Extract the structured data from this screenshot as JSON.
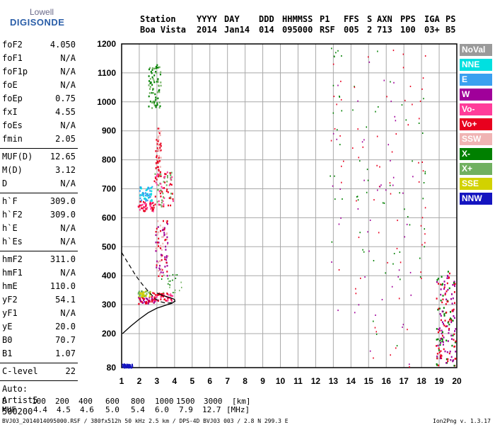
{
  "logo": {
    "line1": "Lowell",
    "line2": "DIGISONDE"
  },
  "header": {
    "row1": [
      "Station",
      "YYYY",
      "DAY",
      "DDD",
      "HHMMSS",
      "P1",
      "FFS",
      "S",
      "AXN",
      "PPS",
      "IGA",
      "PS"
    ],
    "row2": [
      "Boa Vista",
      "2014",
      "Jan14",
      "014",
      "095000",
      "RSF",
      "005",
      "2",
      "713",
      "100",
      "03+",
      "B5"
    ]
  },
  "params": {
    "group1": [
      {
        "name": "foF2",
        "value": "4.050"
      },
      {
        "name": "foF1",
        "value": "N/A"
      },
      {
        "name": "foF1p",
        "value": "N/A"
      },
      {
        "name": "foE",
        "value": "N/A"
      },
      {
        "name": "foEp",
        "value": "0.75"
      },
      {
        "name": "fxI",
        "value": "4.55"
      },
      {
        "name": "foEs",
        "value": "N/A"
      },
      {
        "name": "fmin",
        "value": "2.05"
      }
    ],
    "group2": [
      {
        "name": "MUF(D)",
        "value": "12.65"
      },
      {
        "name": "M(D)",
        "value": "3.12"
      },
      {
        "name": "D",
        "value": "N/A"
      }
    ],
    "group3": [
      {
        "name": "h`F",
        "value": "309.0"
      },
      {
        "name": "h`F2",
        "value": "309.0"
      },
      {
        "name": "h`E",
        "value": "N/A"
      },
      {
        "name": "h`Es",
        "value": "N/A"
      }
    ],
    "group4": [
      {
        "name": "hmF2",
        "value": "311.0"
      },
      {
        "name": "hmF1",
        "value": "N/A"
      },
      {
        "name": "hmE",
        "value": "110.0"
      },
      {
        "name": "yF2",
        "value": "54.1"
      },
      {
        "name": "yF1",
        "value": "N/A"
      },
      {
        "name": "yE",
        "value": "20.0"
      },
      {
        "name": "B0",
        "value": "70.7"
      },
      {
        "name": "B1",
        "value": "1.07"
      }
    ],
    "clevel": {
      "name": "C-level",
      "value": "22"
    },
    "auto": [
      "Auto:",
      "Artist5",
      "500200"
    ]
  },
  "chart_data": {
    "type": "scatter",
    "x_ticks": [
      "1",
      "2",
      "3",
      "4",
      "5",
      "6",
      "7",
      "8",
      "9",
      "10",
      "11",
      "12",
      "13",
      "14",
      "15",
      "16",
      "17",
      "18",
      "19",
      "20"
    ],
    "y_ticks": [
      "80",
      "200",
      "300",
      "400",
      "500",
      "600",
      "700",
      "800",
      "900",
      "1000",
      "1100",
      "1200"
    ],
    "xlim": [
      1,
      20
    ],
    "ylim": [
      80,
      1200
    ],
    "y_scale": "virtual height, 80 at bottom, 200 to 1200 linear",
    "grid": true,
    "legend": [
      {
        "name": "NoVal",
        "color": "#9a9a9a"
      },
      {
        "name": "NNE",
        "color": "#00e0e0"
      },
      {
        "name": "E",
        "color": "#3aa0f0"
      },
      {
        "name": "W",
        "color": "#a0009a"
      },
      {
        "name": "Vo-",
        "color": "#ff3c9a"
      },
      {
        "name": "Vo+",
        "color": "#e8001e"
      },
      {
        "name": "SSW",
        "color": "#f0b4b4"
      },
      {
        "name": "X-",
        "color": "#008000"
      },
      {
        "name": "X+",
        "color": "#70b060"
      },
      {
        "name": "SSE",
        "color": "#d2d200"
      },
      {
        "name": "NNW",
        "color": "#1414c0"
      }
    ],
    "profile_curve": [
      [
        1.05,
        200
      ],
      [
        1.5,
        225
      ],
      [
        2.0,
        250
      ],
      [
        2.5,
        272
      ],
      [
        3.0,
        288
      ],
      [
        3.5,
        298
      ],
      [
        3.85,
        305
      ],
      [
        4.02,
        312
      ],
      [
        4.0,
        318
      ],
      [
        3.75,
        324
      ],
      [
        3.4,
        330
      ],
      [
        3.0,
        340
      ]
    ],
    "muf_curve": [
      [
        1.0,
        480
      ],
      [
        1.4,
        440
      ],
      [
        1.8,
        400
      ],
      [
        2.2,
        368
      ],
      [
        2.6,
        340
      ],
      [
        2.9,
        320
      ],
      [
        3.2,
        310
      ],
      [
        3.55,
        305
      ],
      [
        3.85,
        307
      ],
      [
        4.05,
        312
      ]
    ],
    "clusters": [
      {
        "f": [
          1.9,
          2.9
        ],
        "h": [
          305,
          330
        ],
        "colors": [
          "#e8001e",
          "#a0009a"
        ]
      },
      {
        "f": [
          2.7,
          3.9
        ],
        "h": [
          315,
          345
        ],
        "colors": [
          "#e8001e",
          "#ff3c9a"
        ]
      },
      {
        "f": [
          3.2,
          4.4
        ],
        "h": [
          340,
          410
        ],
        "colors": [
          "#70b060",
          "#008000"
        ]
      },
      {
        "f": [
          1.9,
          2.6
        ],
        "h": [
          330,
          350
        ],
        "colors": [
          "#d2d200",
          "#70b060"
        ]
      },
      {
        "f": [
          2.9,
          3.6
        ],
        "h": [
          400,
          600
        ],
        "colors": [
          "#f0b4b4",
          "#e8001e",
          "#a0009a"
        ]
      },
      {
        "f": [
          1.9,
          2.8
        ],
        "h": [
          625,
          660
        ],
        "colors": [
          "#e8001e",
          "#ff3c9a"
        ]
      },
      {
        "f": [
          2.0,
          2.7
        ],
        "h": [
          660,
          710
        ],
        "colors": [
          "#3aa0f0",
          "#00e0e0"
        ]
      },
      {
        "f": [
          2.8,
          3.9
        ],
        "h": [
          640,
          760
        ],
        "colors": [
          "#e8001e",
          "#ff3c9a",
          "#70b060"
        ]
      },
      {
        "f": [
          2.5,
          3.2
        ],
        "h": [
          980,
          1130
        ],
        "colors": [
          "#70b060",
          "#008000"
        ]
      },
      {
        "f": [
          2.9,
          3.2
        ],
        "h": [
          760,
          920
        ],
        "colors": [
          "#f0b4b4",
          "#e8001e"
        ]
      },
      {
        "f": [
          12.8,
          13.6
        ],
        "h": [
          240,
          1190
        ],
        "colors": [
          "#e8001e",
          "#a0009a",
          "#008000"
        ]
      },
      {
        "f": [
          17.8,
          18.2
        ],
        "h": [
          380,
          1180
        ],
        "colors": [
          "#e8001e",
          "#008000"
        ]
      },
      {
        "f": [
          18.8,
          19.9
        ],
        "h": [
          85,
          420
        ],
        "colors": [
          "#008000",
          "#a0009a",
          "#e8001e"
        ]
      },
      {
        "f": [
          14.0,
          17.5
        ],
        "h": [
          85,
          1190
        ],
        "colors": [
          "#e8001e",
          "#008000",
          "#a0009a"
        ]
      },
      {
        "f": [
          1.0,
          1.6
        ],
        "h": [
          82,
          95
        ],
        "colors": [
          "#1414c0"
        ]
      }
    ]
  },
  "distance_table": {
    "d_label": "D",
    "d_values": [
      "100",
      "200",
      "400",
      "600",
      "800",
      "1000",
      "1500",
      "3000"
    ],
    "d_unit": "[km]",
    "muf_label": "MUF",
    "muf_values": [
      "4.4",
      "4.5",
      "4.6",
      "5.0",
      "5.4",
      "6.0",
      "7.9",
      "12.7"
    ],
    "muf_unit": "[MHz]"
  },
  "footer": {
    "left": "BVJ03_2014014095000.RSF / 380fx512h 50 kHz 2.5 km / DPS-4D BVJ03 003 / 2.8 N 299.3 E",
    "right": "Ion2Png v. 1.3.17"
  }
}
